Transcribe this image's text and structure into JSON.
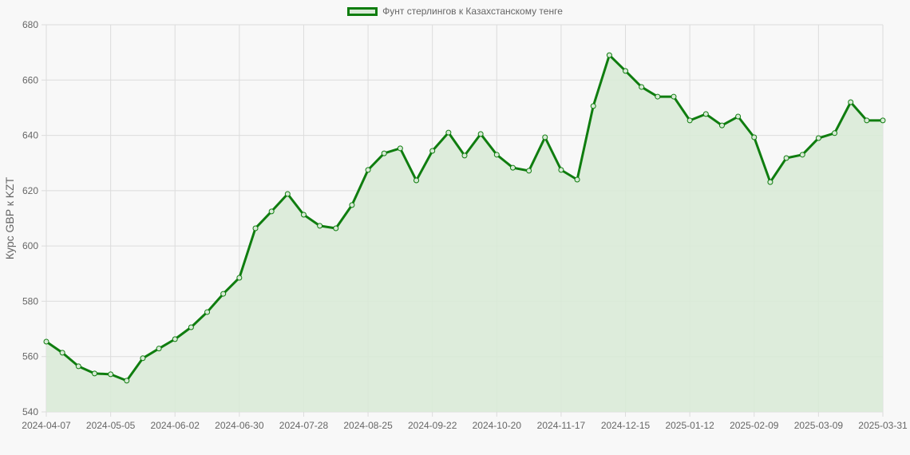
{
  "chart_data": {
    "type": "area",
    "title": "",
    "legend": {
      "position": "top",
      "entries": [
        "Фунт стерлингов к Казахстанскому тенге"
      ]
    },
    "xlabel": "",
    "ylabel": "Курс GBP к KZT",
    "ylim": [
      540,
      680
    ],
    "yticks": [
      540,
      560,
      580,
      600,
      620,
      640,
      660,
      680
    ],
    "grid": true,
    "colors": {
      "line": "#0f7d0f",
      "fill": "#d9ead7"
    },
    "categories": [
      "2024-04-07",
      "2024-04-14",
      "2024-04-21",
      "2024-04-28",
      "2024-05-05",
      "2024-05-12",
      "2024-05-19",
      "2024-05-26",
      "2024-06-02",
      "2024-06-09",
      "2024-06-16",
      "2024-06-23",
      "2024-06-30",
      "2024-07-07",
      "2024-07-14",
      "2024-07-21",
      "2024-07-28",
      "2024-08-04",
      "2024-08-11",
      "2024-08-18",
      "2024-08-25",
      "2024-09-01",
      "2024-09-08",
      "2024-09-15",
      "2024-09-22",
      "2024-09-29",
      "2024-10-06",
      "2024-10-13",
      "2024-10-20",
      "2024-10-27",
      "2024-11-03",
      "2024-11-10",
      "2024-11-17",
      "2024-11-24",
      "2024-12-01",
      "2024-12-08",
      "2024-12-15",
      "2024-12-22",
      "2024-12-29",
      "2025-01-05",
      "2025-01-12",
      "2025-01-19",
      "2025-01-26",
      "2025-02-02",
      "2025-02-09",
      "2025-02-16",
      "2025-02-23",
      "2025-03-02",
      "2025-03-09",
      "2025-03-16",
      "2025-03-23",
      "2025-03-30",
      "2025-03-31"
    ],
    "xtick_labels": [
      "2024-04-07",
      "2024-05-05",
      "2024-06-02",
      "2024-06-30",
      "2024-07-28",
      "2024-08-25",
      "2024-09-22",
      "2024-10-20",
      "2024-11-17",
      "2024-12-15",
      "2025-01-12",
      "2025-02-09",
      "2025-03-09",
      "2025-03-31"
    ],
    "series": [
      {
        "name": "Фунт стерлингов к Казахстанскому тенге",
        "values": [
          565.4,
          561.4,
          556.5,
          553.9,
          553.6,
          551.3,
          559.4,
          562.9,
          566.3,
          570.6,
          576.1,
          582.7,
          588.5,
          606.4,
          612.5,
          618.8,
          611.3,
          607.3,
          606.4,
          614.8,
          627.5,
          633.5,
          635.3,
          623.7,
          634.4,
          641.0,
          632.7,
          640.5,
          633.0,
          628.3,
          627.2,
          639.3,
          627.5,
          624.0,
          650.6,
          669.0,
          663.3,
          657.5,
          654.0,
          654.0,
          645.4,
          647.7,
          643.6,
          646.8,
          639.3,
          623.1,
          631.8,
          633.0,
          639.0,
          640.8,
          652.0,
          645.4,
          645.4
        ]
      }
    ]
  }
}
